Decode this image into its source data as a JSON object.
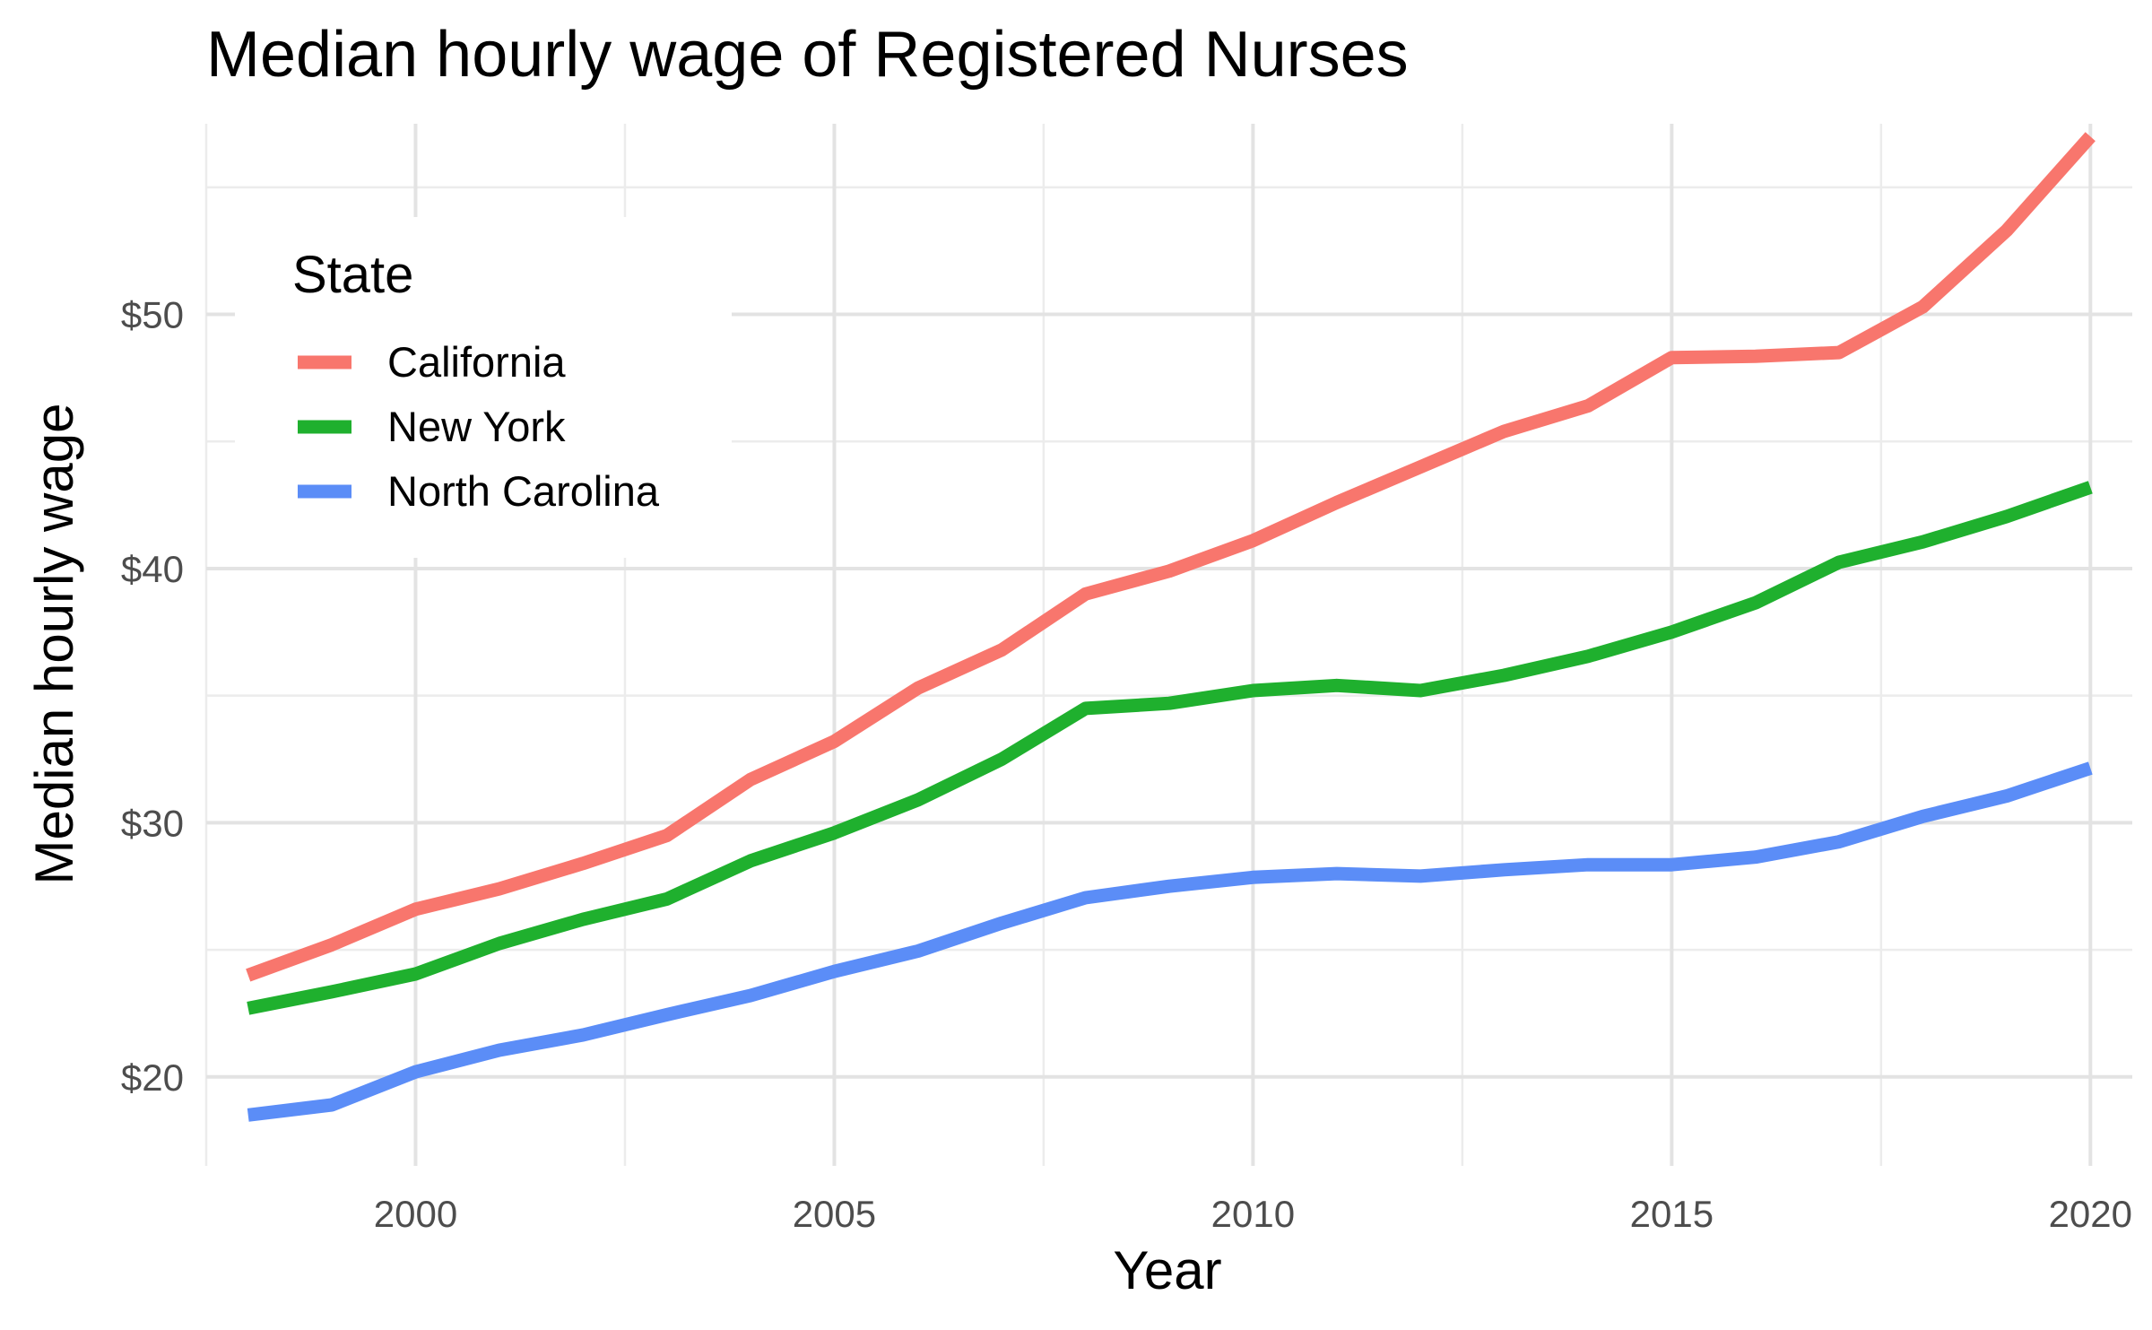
{
  "chart_data": {
    "type": "line",
    "title": "Median hourly wage of Registered Nurses",
    "xlabel": "Year",
    "ylabel": "Median hourly wage",
    "xlim": [
      1997.5,
      2020.5
    ],
    "ylim": [
      16.5,
      57.5
    ],
    "x_ticks": [
      2000,
      2005,
      2010,
      2015,
      2020
    ],
    "x_tick_labels": [
      "2000",
      "2005",
      "2010",
      "2015",
      "2020"
    ],
    "y_ticks": [
      20,
      30,
      40,
      50
    ],
    "y_tick_labels": [
      "$20",
      "$30",
      "$40",
      "$50"
    ],
    "grid": true,
    "legend": {
      "title": "State",
      "position": "top-left, inside"
    },
    "x": [
      1998,
      1999,
      2000,
      2001,
      2002,
      2003,
      2004,
      2005,
      2006,
      2007,
      2008,
      2009,
      2010,
      2011,
      2012,
      2013,
      2014,
      2015,
      2016,
      2017,
      2018,
      2019,
      2020
    ],
    "series": [
      {
        "name": "California",
        "color": "#F8766D",
        "values": [
          24.0,
          25.2,
          26.6,
          27.4,
          28.4,
          29.5,
          31.7,
          33.2,
          35.3,
          36.8,
          39.0,
          39.9,
          41.1,
          42.6,
          44.0,
          45.4,
          46.4,
          48.3,
          48.35,
          48.5,
          50.3,
          53.3,
          57.0
        ]
      },
      {
        "name": "New York",
        "color": "#1FB02E",
        "values": [
          22.7,
          23.35,
          24.05,
          25.25,
          26.2,
          27.0,
          28.5,
          29.6,
          30.9,
          32.5,
          34.5,
          34.7,
          35.2,
          35.4,
          35.2,
          35.8,
          36.55,
          37.5,
          38.65,
          40.25,
          41.05,
          42.05,
          43.2
        ]
      },
      {
        "name": "North Carolina",
        "color": "#5B8DF7",
        "values": [
          18.5,
          18.9,
          20.2,
          21.05,
          21.65,
          22.45,
          23.2,
          24.15,
          24.95,
          26.05,
          27.05,
          27.5,
          27.85,
          28.0,
          27.9,
          28.15,
          28.35,
          28.35,
          28.65,
          29.25,
          30.25,
          31.05,
          32.15
        ]
      }
    ]
  }
}
